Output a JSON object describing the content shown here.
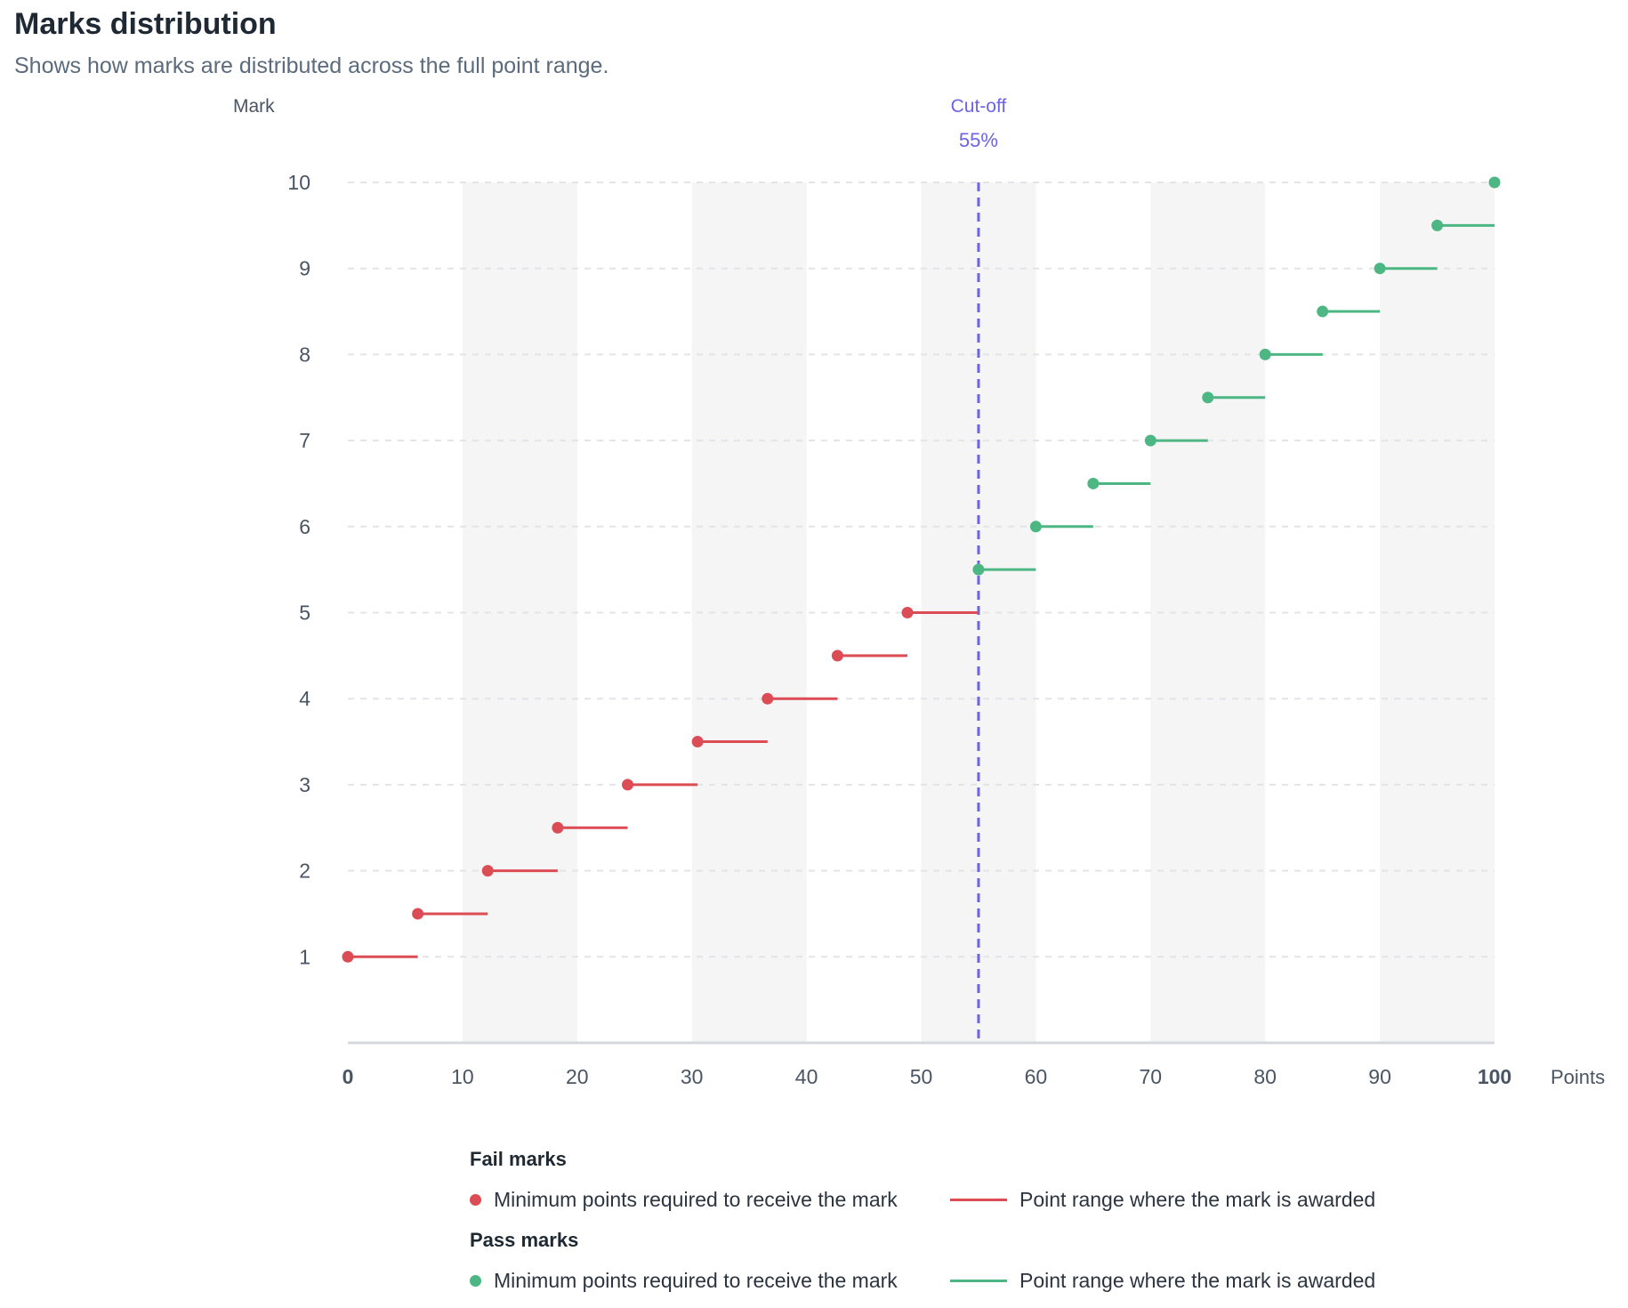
{
  "header": {
    "title": "Marks distribution",
    "subtitle": "Shows how marks are distributed across the full point range."
  },
  "chart_data": {
    "type": "scatter",
    "title": "Marks distribution",
    "subtitle": "Shows how marks are distributed across the full point range.",
    "ylabel": "Mark",
    "xlabel": "Points",
    "xlim": [
      0,
      100
    ],
    "ylim": [
      0,
      10
    ],
    "x_ticks": [
      0,
      10,
      20,
      30,
      40,
      50,
      60,
      70,
      80,
      90,
      100
    ],
    "y_ticks": [
      1,
      2,
      3,
      4,
      5,
      6,
      7,
      8,
      9,
      10
    ],
    "grid": "horizontal dashed",
    "alternating_bands": [
      [
        10,
        20
      ],
      [
        30,
        40
      ],
      [
        50,
        60
      ],
      [
        70,
        80
      ],
      [
        90,
        100
      ]
    ],
    "cutoff": {
      "label": "Cut-off",
      "value_label": "55%",
      "x": 55,
      "color": "#6c63e8"
    },
    "series": [
      {
        "name": "Fail marks",
        "color": "#dc4c54",
        "points": [
          {
            "mark": 1.0,
            "min": 0,
            "max": 6.1
          },
          {
            "mark": 1.5,
            "min": 6.1,
            "max": 12.2
          },
          {
            "mark": 2.0,
            "min": 12.2,
            "max": 18.3
          },
          {
            "mark": 2.5,
            "min": 18.3,
            "max": 24.4
          },
          {
            "mark": 3.0,
            "min": 24.4,
            "max": 30.5
          },
          {
            "mark": 3.5,
            "min": 30.5,
            "max": 36.6
          },
          {
            "mark": 4.0,
            "min": 36.6,
            "max": 42.7
          },
          {
            "mark": 4.5,
            "min": 42.7,
            "max": 48.8
          },
          {
            "mark": 5.0,
            "min": 48.8,
            "max": 55
          }
        ]
      },
      {
        "name": "Pass marks",
        "color": "#4cb782",
        "points": [
          {
            "mark": 5.5,
            "min": 55,
            "max": 60
          },
          {
            "mark": 6.0,
            "min": 60,
            "max": 65
          },
          {
            "mark": 6.5,
            "min": 65,
            "max": 70
          },
          {
            "mark": 7.0,
            "min": 70,
            "max": 75
          },
          {
            "mark": 7.5,
            "min": 75,
            "max": 80
          },
          {
            "mark": 8.0,
            "min": 80,
            "max": 85
          },
          {
            "mark": 8.5,
            "min": 85,
            "max": 90
          },
          {
            "mark": 9.0,
            "min": 90,
            "max": 95
          },
          {
            "mark": 9.5,
            "min": 95,
            "max": 100
          },
          {
            "mark": 10.0,
            "min": 100,
            "max": 100
          }
        ]
      }
    ]
  },
  "legend": {
    "fail": {
      "title": "Fail marks",
      "dot_label": "Minimum points required to receive the mark",
      "line_label": "Point range where the mark is awarded",
      "color": "#dc4c54"
    },
    "pass": {
      "title": "Pass marks",
      "dot_label": "Minimum points required to receive the mark",
      "line_label": "Point range where the mark is awarded",
      "color": "#4cb782"
    }
  }
}
